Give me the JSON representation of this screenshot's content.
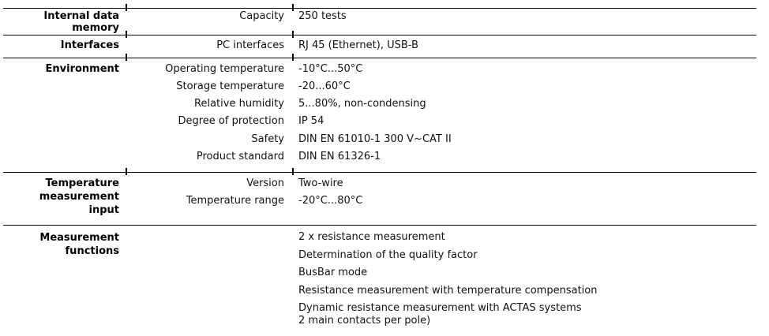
{
  "colors": {
    "text": "#121212",
    "label": "#000000",
    "rule": "#000000",
    "background": "#ffffff"
  },
  "table": {
    "sections": [
      {
        "label": "Internal data memory",
        "label_lines": [
          "Internal data",
          "memory"
        ],
        "rows": [
          {
            "param": "Capacity",
            "value": "250 tests"
          }
        ]
      },
      {
        "label": "Interfaces",
        "label_lines": [
          "Interfaces"
        ],
        "rows": [
          {
            "param": "PC interfaces",
            "value": "RJ 45 (Ethernet), USB-B"
          }
        ]
      },
      {
        "label": "Environment",
        "label_lines": [
          "Environment"
        ],
        "rows": [
          {
            "param": "Operating temperature",
            "value": "-10°C...50°C"
          },
          {
            "param": "Storage temperature",
            "value": "-20...60°C"
          },
          {
            "param": "Relative humidity",
            "value": "5...80%, non-condensing"
          },
          {
            "param": "Degree of protection",
            "value": "IP 54"
          },
          {
            "param": "Safety",
            "value": "DIN EN 61010-1 300 V~CAT II"
          },
          {
            "param": "Product standard",
            "value": "DIN EN 61326-1"
          }
        ]
      },
      {
        "label": "Temperature measurement input",
        "label_lines": [
          "Temperature",
          "measurement",
          "input"
        ],
        "rows": [
          {
            "param": "Version",
            "value": "Two-wire"
          },
          {
            "param": "Temperature range",
            "value": "-20°C...80°C"
          }
        ]
      },
      {
        "label": "Measurement functions",
        "label_lines": [
          "Measurement",
          "functions"
        ],
        "items": [
          {
            "lines": [
              "2 x resistance measurement"
            ]
          },
          {
            "lines": [
              "Determination of the quality factor"
            ]
          },
          {
            "lines": [
              "BusBar mode"
            ]
          },
          {
            "lines": [
              "Resistance measurement with temperature compensation"
            ]
          },
          {
            "lines": [
              "Dynamic resistance measurement with ACTAS systems",
              "2 main contacts per pole)"
            ]
          }
        ]
      }
    ]
  }
}
